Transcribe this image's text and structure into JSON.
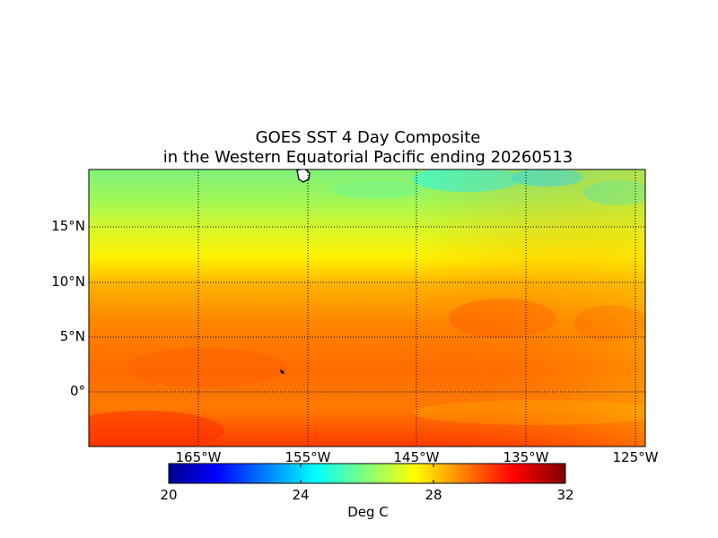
{
  "title": {
    "line1": "GOES SST 4 Day Composite",
    "line2": "in the Western Equatorial Pacific ending 20260513"
  },
  "map": {
    "lat_range": [
      -5,
      20
    ],
    "lon_range": [
      -175,
      -124.5
    ],
    "lat_ticks": [
      {
        "value": 15,
        "label": "15°N"
      },
      {
        "value": 10,
        "label": "10°N"
      },
      {
        "value": 5,
        "label": "5°N"
      },
      {
        "value": 0,
        "label": "0°"
      }
    ],
    "lon_ticks": [
      {
        "value": -165,
        "label": "165°W"
      },
      {
        "value": -155,
        "label": "155°W"
      },
      {
        "value": -145,
        "label": "145°W"
      },
      {
        "value": -135,
        "label": "135°W"
      },
      {
        "value": -125,
        "label": "125°W"
      }
    ],
    "grid": true,
    "colormap": "jet"
  },
  "colorbar": {
    "min": 20,
    "max": 32,
    "ticks": [
      "20",
      "24",
      "28",
      "32"
    ],
    "unit": "Deg C",
    "colors": [
      "#00008f",
      "#0000ff",
      "#00ffff",
      "#ffff00",
      "#ff0000",
      "#800000"
    ]
  }
}
